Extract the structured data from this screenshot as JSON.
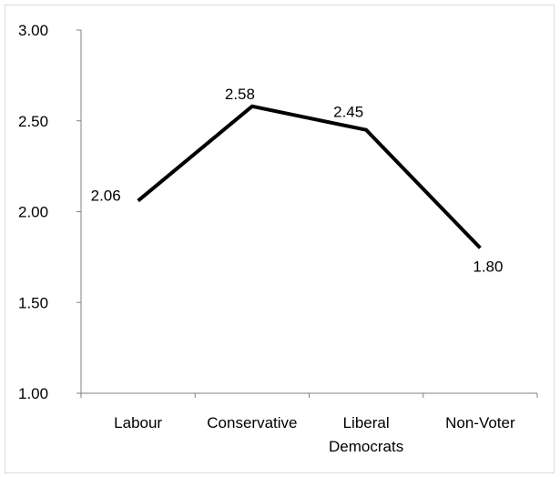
{
  "chart_data": {
    "type": "line",
    "title": "",
    "xlabel": "",
    "ylabel": "",
    "categories": [
      [
        "Labour"
      ],
      [
        "Conservative"
      ],
      [
        "Liberal",
        "Democrats"
      ],
      [
        "Non-Voter"
      ]
    ],
    "series": [
      {
        "values": [
          2.06,
          2.58,
          2.45,
          1.8
        ],
        "color": "#000000"
      }
    ],
    "data_labels": [
      "2.06",
      "2.58",
      "2.45",
      "1.80"
    ],
    "ylim": [
      1.0,
      3.0
    ],
    "yticks": [
      "1.00",
      "1.50",
      "2.00",
      "2.50",
      "3.00"
    ],
    "grid": false,
    "legend": "none"
  }
}
